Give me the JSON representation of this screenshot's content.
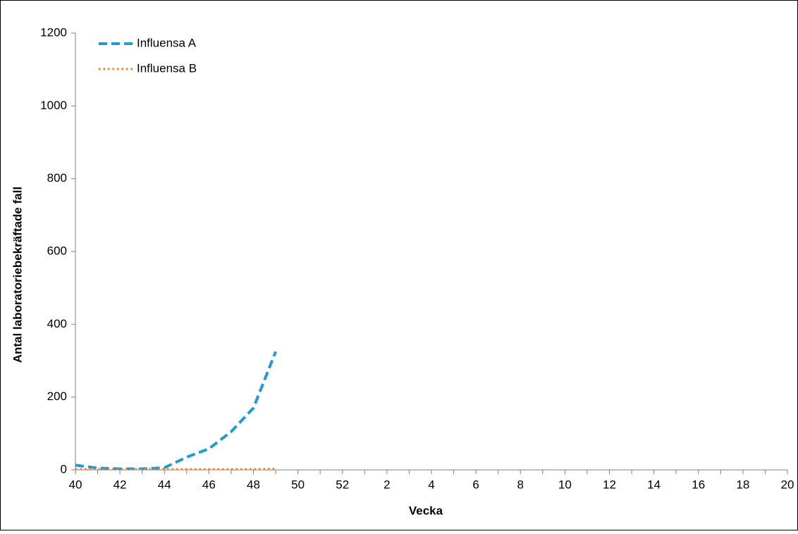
{
  "chart_data": {
    "type": "line",
    "x_label": "Vecka",
    "y_label": "Antal laboratoriebekräftade fall",
    "categories": [
      40,
      null,
      42,
      null,
      44,
      null,
      46,
      null,
      48,
      null,
      50,
      null,
      52,
      null,
      2,
      null,
      4,
      null,
      6,
      null,
      8,
      null,
      10,
      null,
      12,
      null,
      14,
      null,
      16,
      null,
      18,
      null,
      20
    ],
    "series": [
      {
        "name": "Influensa A",
        "color": "#1f9bd7",
        "dash": "dashed",
        "values": [
          13,
          5,
          3,
          3,
          6,
          35,
          58,
          105,
          170,
          325,
          null,
          null,
          null,
          null,
          null,
          null,
          null,
          null,
          null,
          null,
          null,
          null,
          null,
          null,
          null,
          null,
          null,
          null,
          null,
          null,
          null,
          null,
          null
        ]
      },
      {
        "name": "Influensa B",
        "color": "#f07c28",
        "dash": "dotted",
        "values": [
          2,
          2,
          2,
          2,
          2,
          2,
          2,
          2,
          2,
          3,
          null,
          null,
          null,
          null,
          null,
          null,
          null,
          null,
          null,
          null,
          null,
          null,
          null,
          null,
          null,
          null,
          null,
          null,
          null,
          null,
          null,
          null,
          null
        ]
      }
    ],
    "ylim": [
      0,
      1200
    ],
    "yticks": [
      0,
      200,
      400,
      600,
      800,
      1000,
      1200
    ],
    "grid": false,
    "legend": "upper left"
  }
}
